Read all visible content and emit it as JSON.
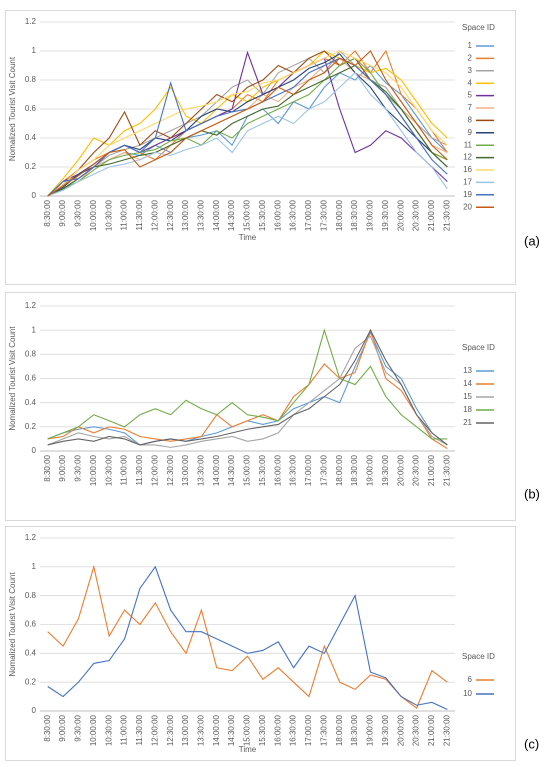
{
  "chart_data": [
    {
      "type": "line",
      "panel_label": "(a)",
      "ylabel": "Nomalized Tourist Visit Count",
      "xlabel": "Time",
      "legend_title": "Space ID",
      "categories": [
        "8:30:00",
        "9:00:00",
        "9:30:00",
        "10:00:00",
        "10:30:00",
        "11:00:00",
        "11:30:00",
        "12:00:00",
        "12:30:00",
        "13:00:00",
        "13:30:00",
        "14:00:00",
        "14:30:00",
        "15:00:00",
        "15:30:00",
        "16:00:00",
        "16:30:00",
        "17:00:00",
        "17:30:00",
        "18:00:00",
        "18:30:00",
        "19:00:00",
        "19:30:00",
        "20:00:00",
        "20:30:00",
        "21:00:00",
        "21:30:00"
      ],
      "ylim": [
        0,
        1.2
      ],
      "yticks": [
        0,
        0.2,
        0.4,
        0.6,
        0.8,
        1,
        1.2
      ],
      "grid": true,
      "series": [
        {
          "name": "1",
          "color": "#5b9bd5",
          "values": [
            0,
            0.05,
            0.12,
            0.2,
            0.25,
            0.3,
            0.28,
            0.35,
            0.3,
            0.4,
            0.42,
            0.45,
            0.35,
            0.55,
            0.6,
            0.5,
            0.65,
            0.6,
            0.75,
            0.85,
            0.8,
            0.9,
            0.78,
            0.7,
            0.55,
            0.4,
            0.3
          ]
        },
        {
          "name": "2",
          "color": "#ed7d31",
          "values": [
            0,
            0.1,
            0.18,
            0.25,
            0.3,
            0.35,
            0.3,
            0.25,
            0.35,
            0.45,
            0.5,
            0.55,
            0.6,
            0.7,
            0.65,
            0.8,
            0.85,
            0.9,
            0.95,
            0.9,
            1,
            0.85,
            1,
            0.7,
            0.6,
            0.45,
            0.3
          ]
        },
        {
          "name": "3",
          "color": "#a5a5a5",
          "values": [
            0,
            0.08,
            0.15,
            0.2,
            0.28,
            0.32,
            0.35,
            0.4,
            0.45,
            0.5,
            0.55,
            0.65,
            0.75,
            0.8,
            0.7,
            0.85,
            0.9,
            0.95,
            0.85,
            1,
            0.9,
            0.8,
            0.75,
            0.6,
            0.5,
            0.4,
            0.35
          ]
        },
        {
          "name": "4",
          "color": "#ffc000",
          "values": [
            0,
            0.12,
            0.25,
            0.4,
            0.35,
            0.45,
            0.5,
            0.6,
            0.75,
            0.55,
            0.5,
            0.6,
            0.7,
            0.65,
            0.75,
            0.8,
            0.85,
            0.9,
            1,
            0.95,
            0.9,
            0.85,
            0.88,
            0.8,
            0.65,
            0.5,
            0.4
          ]
        },
        {
          "name": "5",
          "color": "#7030a0",
          "values": [
            0,
            0.1,
            0.15,
            0.2,
            0.3,
            0.35,
            0.3,
            0.35,
            0.4,
            0.45,
            0.5,
            0.55,
            0.6,
            0.99,
            0.7,
            0.75,
            0.85,
            0.9,
            0.95,
            0.6,
            0.3,
            0.35,
            0.45,
            0.4,
            0.3,
            0.2,
            0.1
          ]
        },
        {
          "name": "7",
          "color": "#f4b183",
          "values": [
            0,
            0.05,
            0.1,
            0.2,
            0.25,
            0.3,
            0.25,
            0.3,
            0.35,
            0.4,
            0.45,
            0.5,
            0.55,
            0.6,
            0.7,
            0.65,
            0.75,
            0.8,
            0.9,
            0.95,
            0.85,
            0.8,
            0.7,
            0.6,
            0.5,
            0.35,
            0.3
          ]
        },
        {
          "name": "8",
          "color": "#9e480e",
          "values": [
            0,
            0.08,
            0.18,
            0.3,
            0.4,
            0.58,
            0.35,
            0.45,
            0.4,
            0.5,
            0.6,
            0.7,
            0.65,
            0.75,
            0.8,
            0.9,
            0.85,
            0.95,
            1,
            0.9,
            0.95,
            0.8,
            0.7,
            0.55,
            0.4,
            0.3,
            0.25
          ]
        },
        {
          "name": "9",
          "color": "#264478",
          "values": [
            0,
            0.06,
            0.15,
            0.22,
            0.3,
            0.35,
            0.32,
            0.4,
            0.38,
            0.45,
            0.55,
            0.6,
            0.58,
            0.65,
            0.7,
            0.75,
            0.8,
            0.88,
            0.92,
            0.98,
            0.85,
            0.75,
            0.6,
            0.5,
            0.4,
            0.3,
            0.2
          ]
        },
        {
          "name": "11",
          "color": "#70ad47",
          "values": [
            0,
            0.05,
            0.1,
            0.18,
            0.25,
            0.28,
            0.3,
            0.32,
            0.38,
            0.4,
            0.35,
            0.45,
            0.4,
            0.5,
            0.55,
            0.6,
            0.65,
            0.7,
            0.8,
            0.9,
            0.95,
            0.85,
            0.7,
            0.6,
            0.45,
            0.3,
            0.25
          ]
        },
        {
          "name": "12",
          "color": "#43682b",
          "values": [
            0,
            0.05,
            0.12,
            0.2,
            0.22,
            0.25,
            0.28,
            0.3,
            0.35,
            0.4,
            0.45,
            0.42,
            0.5,
            0.55,
            0.6,
            0.62,
            0.7,
            0.75,
            0.8,
            0.85,
            0.9,
            0.8,
            0.72,
            0.6,
            0.45,
            0.3,
            0.2
          ]
        },
        {
          "name": "16",
          "color": "#ffd966",
          "values": [
            0,
            0.08,
            0.18,
            0.25,
            0.35,
            0.4,
            0.45,
            0.5,
            0.55,
            0.6,
            0.62,
            0.65,
            0.7,
            0.72,
            0.78,
            0.8,
            0.85,
            0.9,
            0.95,
            1,
            0.95,
            0.9,
            0.85,
            0.75,
            0.6,
            0.45,
            0.35
          ]
        },
        {
          "name": "17",
          "color": "#9dc3e6",
          "values": [
            0,
            0.04,
            0.1,
            0.15,
            0.2,
            0.22,
            0.25,
            0.3,
            0.28,
            0.32,
            0.35,
            0.4,
            0.3,
            0.45,
            0.5,
            0.55,
            0.5,
            0.6,
            0.65,
            0.75,
            0.85,
            0.7,
            0.6,
            0.45,
            0.3,
            0.2,
            0.05
          ]
        },
        {
          "name": "19",
          "color": "#4472c4",
          "values": [
            0,
            0.1,
            0.12,
            0.2,
            0.3,
            0.35,
            0.3,
            0.4,
            0.78,
            0.45,
            0.5,
            0.55,
            0.58,
            0.6,
            0.65,
            0.7,
            0.75,
            0.85,
            0.9,
            0.95,
            0.9,
            0.8,
            0.7,
            0.55,
            0.4,
            0.25,
            0.15
          ]
        },
        {
          "name": "20",
          "color": "#c55a11",
          "values": [
            0,
            0.07,
            0.14,
            0.22,
            0.3,
            0.32,
            0.2,
            0.25,
            0.3,
            0.4,
            0.45,
            0.5,
            0.55,
            0.6,
            0.65,
            0.75,
            0.7,
            0.8,
            0.85,
            0.95,
            0.9,
            1,
            0.8,
            0.65,
            0.5,
            0.35,
            0.25
          ]
        }
      ]
    },
    {
      "type": "line",
      "panel_label": "(b)",
      "ylabel": "Nomalized Tourist Visit Count",
      "legend_title": "Space ID",
      "categories": [
        "8:30:00",
        "9:00:00",
        "9:30:00",
        "10:00:00",
        "10:30:00",
        "11:00:00",
        "11:30:00",
        "12:00:00",
        "12:30:00",
        "13:00:00",
        "13:30:00",
        "14:00:00",
        "14:30:00",
        "15:00:00",
        "15:30:00",
        "16:00:00",
        "16:30:00",
        "17:00:00",
        "17:30:00",
        "18:00:00",
        "18:30:00",
        "19:00:00",
        "19:30:00",
        "20:00:00",
        "20:30:00",
        "21:00:00",
        "21:30:00"
      ],
      "ylim": [
        0,
        1.2
      ],
      "yticks": [
        0,
        0.2,
        0.4,
        0.6,
        0.8,
        1,
        1.2
      ],
      "grid": true,
      "series": [
        {
          "name": "13",
          "color": "#5b9bd5",
          "values": [
            0.1,
            0.15,
            0.18,
            0.2,
            0.18,
            0.15,
            0.05,
            0.08,
            0.1,
            0.08,
            0.12,
            0.15,
            0.2,
            0.25,
            0.22,
            0.25,
            0.35,
            0.4,
            0.45,
            0.4,
            0.7,
            0.98,
            0.7,
            0.6,
            0.35,
            0.15,
            0.05
          ]
        },
        {
          "name": "14",
          "color": "#ed7d31",
          "values": [
            0.1,
            0.12,
            0.2,
            0.15,
            0.2,
            0.18,
            0.12,
            0.1,
            0.08,
            0.1,
            0.12,
            0.3,
            0.2,
            0.25,
            0.3,
            0.25,
            0.45,
            0.55,
            0.72,
            0.6,
            0.65,
            1,
            0.6,
            0.5,
            0.3,
            0.1,
            0.02
          ]
        },
        {
          "name": "15",
          "color": "#a5a5a5",
          "values": [
            0.05,
            0.1,
            0.15,
            0.12,
            0.1,
            0.12,
            0.05,
            0.05,
            0.03,
            0.05,
            0.08,
            0.1,
            0.12,
            0.08,
            0.1,
            0.15,
            0.3,
            0.4,
            0.5,
            0.6,
            0.85,
            0.95,
            0.65,
            0.55,
            0.3,
            0.12,
            0.05
          ]
        },
        {
          "name": "18",
          "color": "#70ad47",
          "values": [
            0.1,
            0.15,
            0.2,
            0.3,
            0.25,
            0.2,
            0.3,
            0.35,
            0.3,
            0.42,
            0.35,
            0.3,
            0.4,
            0.3,
            0.28,
            0.25,
            0.4,
            0.55,
            1,
            0.6,
            0.55,
            0.7,
            0.45,
            0.3,
            0.2,
            0.1,
            0.1
          ]
        },
        {
          "name": "21",
          "color": "#636363",
          "values": [
            0.05,
            0.08,
            0.1,
            0.08,
            0.12,
            0.1,
            0.05,
            0.08,
            0.1,
            0.08,
            0.1,
            0.12,
            0.15,
            0.18,
            0.2,
            0.22,
            0.3,
            0.35,
            0.45,
            0.55,
            0.75,
            1,
            0.75,
            0.55,
            0.3,
            0.15,
            0.05
          ]
        }
      ]
    },
    {
      "type": "line",
      "panel_label": "(c)",
      "ylabel": "Nomalized Tourist Visit Count",
      "xlabel": "Time",
      "legend_title": "Space ID",
      "categories": [
        "8:30:00",
        "9:00:00",
        "9:30:00",
        "10:00:00",
        "10:30:00",
        "11:00:00",
        "11:30:00",
        "12:00:00",
        "12:30:00",
        "13:00:00",
        "13:30:00",
        "14:00:00",
        "14:30:00",
        "15:00:00",
        "15:30:00",
        "16:00:00",
        "16:30:00",
        "17:00:00",
        "17:30:00",
        "18:00:00",
        "18:30:00",
        "19:00:00",
        "19:30:00",
        "20:00:00",
        "20:30:00",
        "21:00:00",
        "21:30:00"
      ],
      "ylim": [
        0,
        1.2
      ],
      "yticks": [
        0,
        0.2,
        0.4,
        0.6,
        0.8,
        1,
        1.2
      ],
      "grid": true,
      "series": [
        {
          "name": "6",
          "color": "#ed7d31",
          "values": [
            0.55,
            0.45,
            0.64,
            1,
            0.52,
            0.7,
            0.6,
            0.75,
            0.55,
            0.4,
            0.7,
            0.3,
            0.28,
            0.38,
            0.22,
            0.3,
            0.2,
            0.1,
            0.45,
            0.2,
            0.15,
            0.25,
            0.22,
            0.1,
            0.02,
            0.28,
            0.2
          ]
        },
        {
          "name": "10",
          "color": "#4472c4",
          "values": [
            0.17,
            0.1,
            0.2,
            0.33,
            0.35,
            0.5,
            0.85,
            1,
            0.7,
            0.55,
            0.55,
            0.5,
            0.45,
            0.4,
            0.42,
            0.48,
            0.3,
            0.45,
            0.4,
            0.6,
            0.8,
            0.27,
            0.23,
            0.1,
            0.04,
            0.06,
            0.01
          ]
        }
      ]
    }
  ]
}
